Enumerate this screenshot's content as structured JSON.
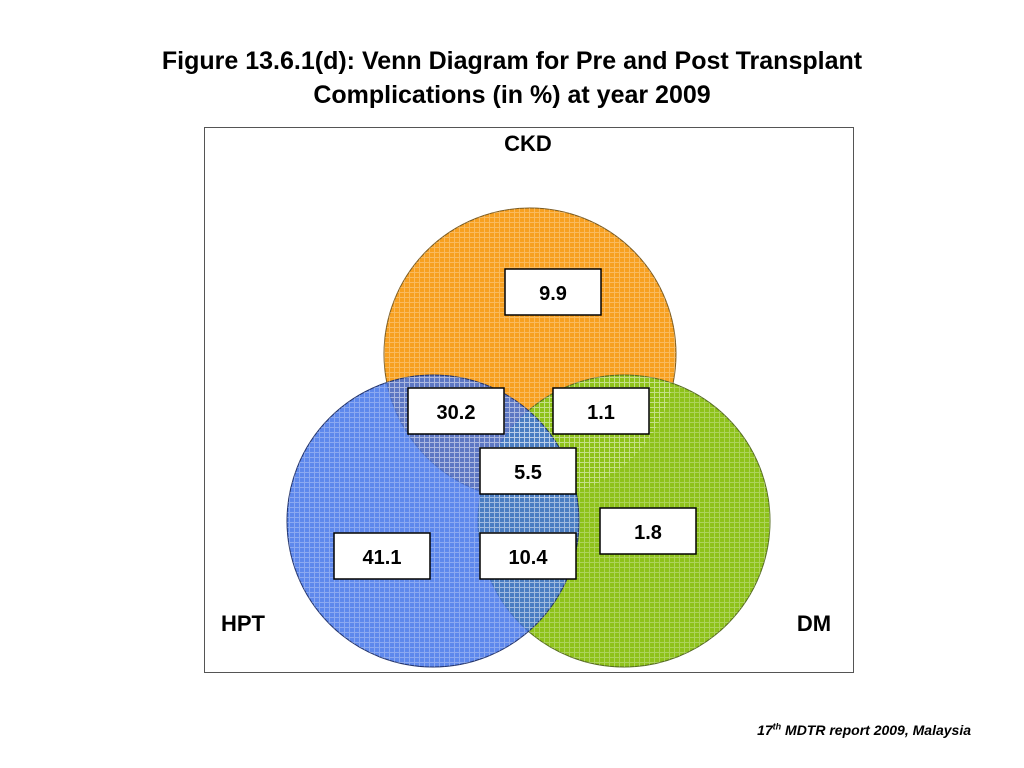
{
  "title": {
    "line1": "Figure 13.6.1(d): Venn Diagram for Pre and Post Transplant",
    "line2": "Complications (in %) at year 2009"
  },
  "sets": {
    "ckd": {
      "label": "CKD",
      "color": "#f7a020"
    },
    "hpt": {
      "label": "HPT",
      "color": "#3a6ee8"
    },
    "dm": {
      "label": "DM",
      "color": "#8ec21a"
    }
  },
  "regions": {
    "ckd_only": "9.9",
    "ckd_hpt": "30.2",
    "ckd_dm": "1.1",
    "all_three": "5.5",
    "hpt_only": "41.1",
    "hpt_dm": "10.4",
    "dm_only": "1.8"
  },
  "source": {
    "number": "17",
    "suffix": "th",
    "text": " MDTR report 2009, Malaysia"
  }
}
